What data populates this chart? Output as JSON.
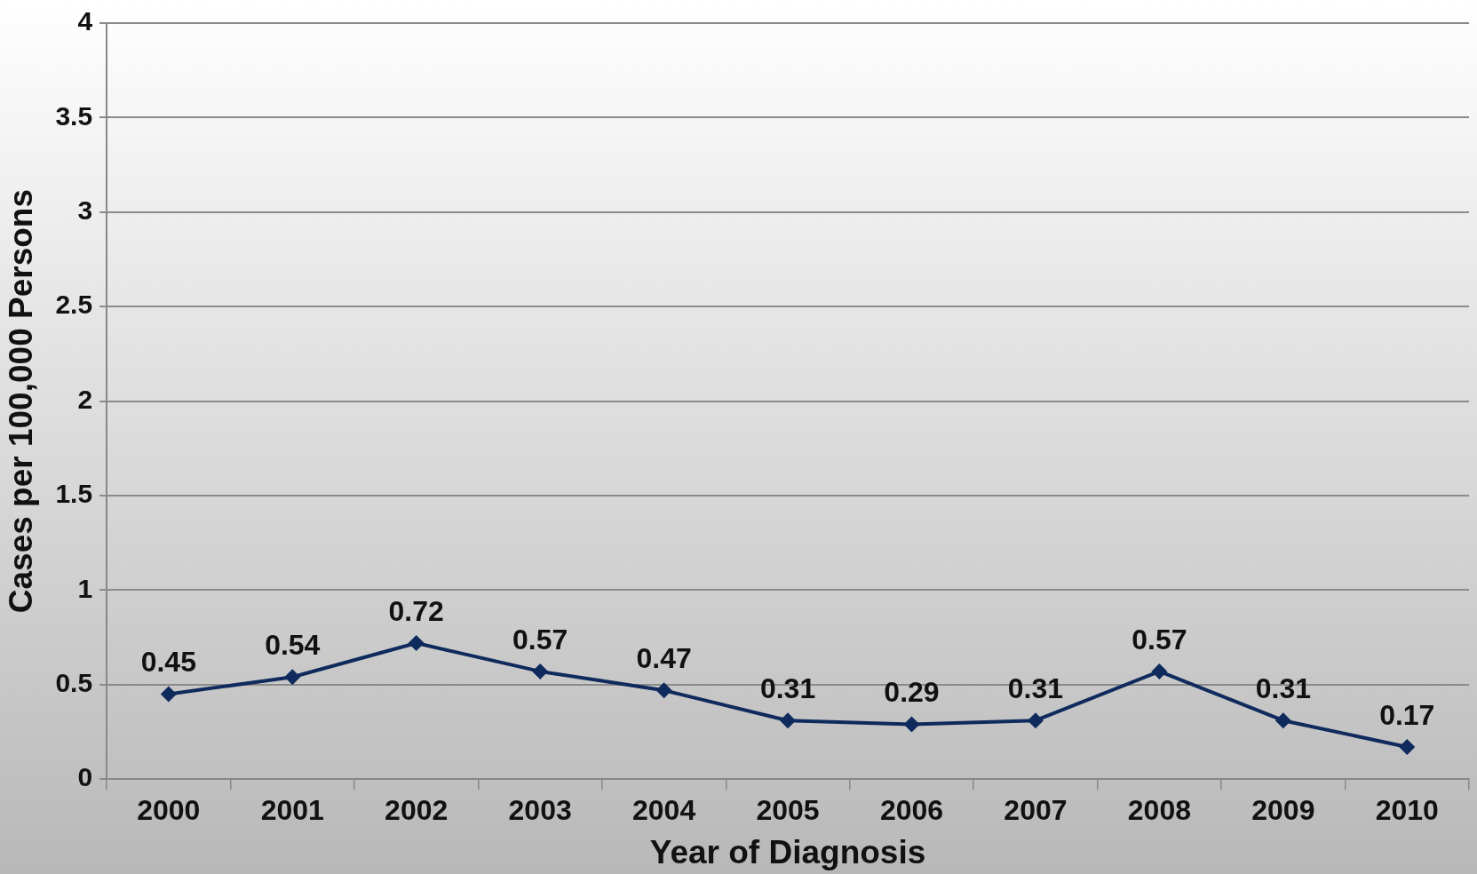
{
  "chart_data": {
    "type": "line",
    "xlabel": "Year of Diagnosis",
    "ylabel": "Cases per 100,000 Persons",
    "categories": [
      "2000",
      "2001",
      "2002",
      "2003",
      "2004",
      "2005",
      "2006",
      "2007",
      "2008",
      "2009",
      "2010"
    ],
    "series": [
      {
        "color": "#0f2a5c",
        "values": [
          0.45,
          0.54,
          0.72,
          0.57,
          0.47,
          0.31,
          0.29,
          0.31,
          0.57,
          0.31,
          0.17
        ]
      }
    ],
    "ylim": [
      0,
      4
    ],
    "yticks": [
      0,
      0.5,
      1,
      1.5,
      2,
      2.5,
      3,
      3.5,
      4
    ],
    "grid": "y",
    "legend": false,
    "marker": "diamond",
    "line_style": "solid",
    "data_labels": true
  }
}
